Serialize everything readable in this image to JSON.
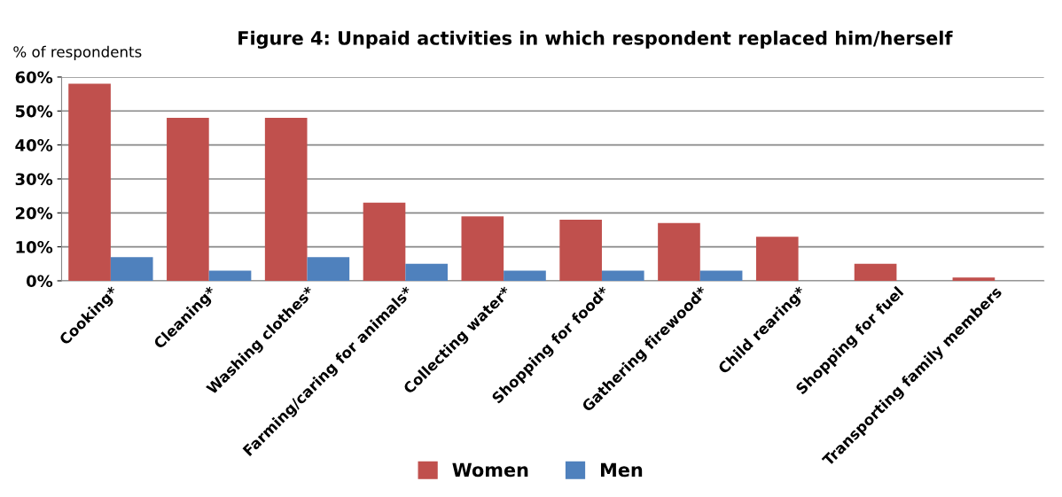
{
  "chart_data": {
    "type": "bar",
    "title": "Figure 4: Unpaid activities in which respondent replaced him/herself",
    "ylabel": "% of respondents",
    "categories": [
      "Cooking*",
      "Cleaning*",
      "Washing clothes*",
      "Farming/caring for animals*",
      "Collecting water*",
      "Shopping for food*",
      "Gathering firewood*",
      "Child rearing*",
      "Shopping for fuel",
      "Transporting family members"
    ],
    "series": [
      {
        "name": "Women",
        "color": "#c0504d",
        "values": [
          58,
          48,
          48,
          23,
          19,
          18,
          17,
          13,
          5,
          1
        ]
      },
      {
        "name": "Men",
        "color": "#4f81bd",
        "values": [
          7,
          3,
          7,
          5,
          3,
          3,
          3,
          0,
          0,
          0
        ]
      }
    ],
    "ylim": [
      0,
      60
    ],
    "yticks": [
      {
        "value": 0,
        "label": "0%"
      },
      {
        "value": 10,
        "label": "10%"
      },
      {
        "value": 20,
        "label": "20%"
      },
      {
        "value": 30,
        "label": "30%"
      },
      {
        "value": 40,
        "label": "40%"
      },
      {
        "value": 50,
        "label": "50%"
      },
      {
        "value": 60,
        "label": "60%"
      }
    ],
    "grid": "y",
    "legend": "bottom"
  }
}
